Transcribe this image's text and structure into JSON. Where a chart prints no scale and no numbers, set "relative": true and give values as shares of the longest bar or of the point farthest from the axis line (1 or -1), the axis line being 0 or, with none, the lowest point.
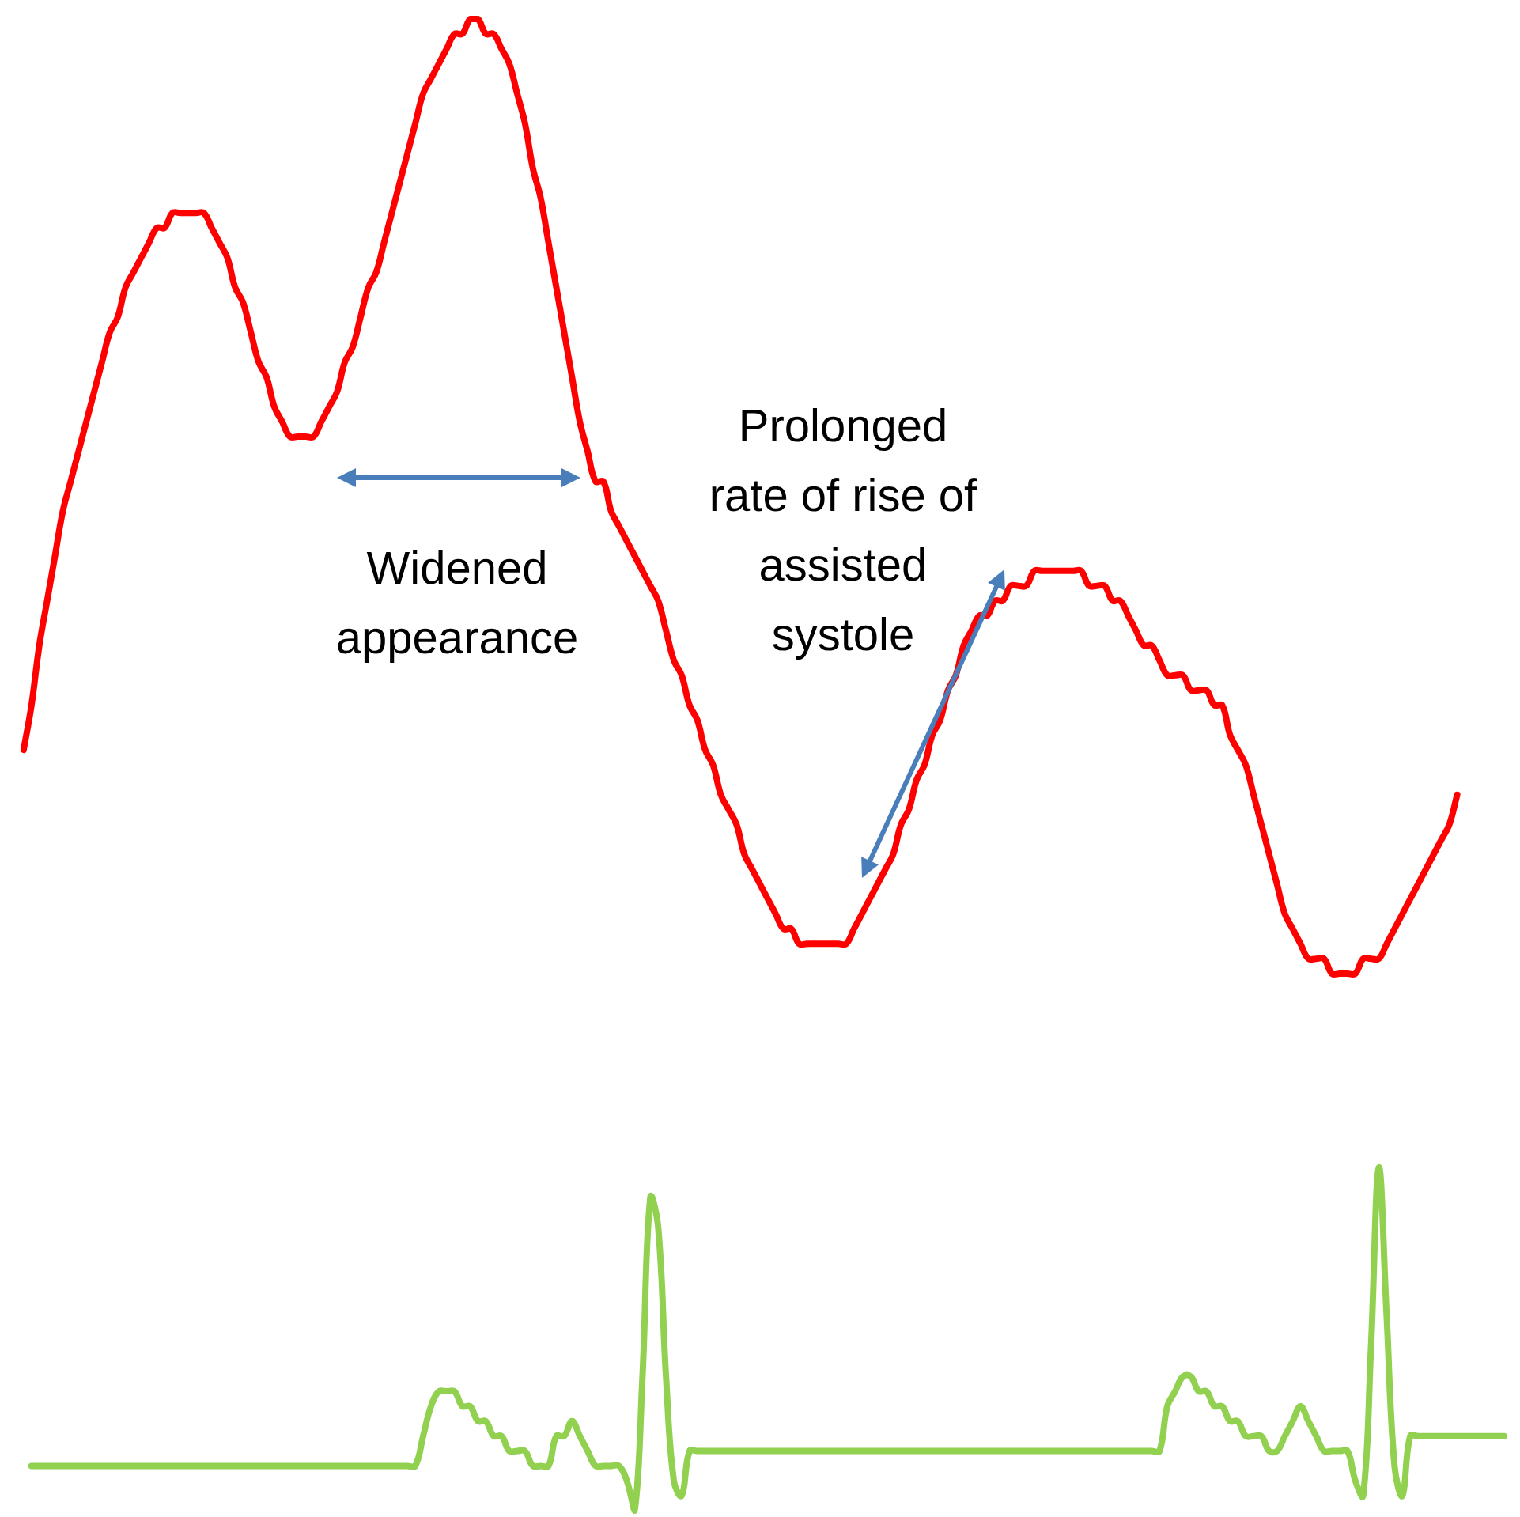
{
  "chart_data": {
    "type": "line",
    "relative": true,
    "categories": [
      null,
      null,
      null,
      null,
      null,
      null,
      null,
      null,
      null,
      null,
      null,
      null,
      null,
      null,
      null,
      null,
      null,
      null,
      null,
      null,
      null,
      null,
      null,
      null,
      null,
      null,
      null,
      null,
      null,
      null,
      null,
      null,
      null,
      null,
      null,
      null,
      null,
      null,
      null,
      null,
      null,
      null,
      null,
      null,
      null,
      null,
      null,
      null,
      null,
      null,
      null,
      null,
      null,
      null,
      null,
      null,
      null,
      null,
      null,
      null,
      null,
      null,
      null,
      null,
      null,
      null,
      null,
      null,
      null,
      null,
      null,
      null,
      null,
      null,
      null,
      null,
      null,
      null,
      null,
      null,
      null,
      null,
      null,
      null,
      null,
      null,
      null,
      null,
      null,
      null,
      null,
      null,
      null,
      null,
      null,
      null,
      null,
      null,
      null,
      null,
      null,
      null,
      null,
      null,
      null,
      null,
      null,
      null,
      null,
      null,
      null,
      null,
      null,
      null,
      null,
      null,
      null,
      null,
      null,
      null,
      null,
      null,
      null,
      null,
      null,
      null,
      null,
      null,
      null,
      null,
      null,
      null,
      null,
      null,
      null,
      null,
      null,
      null,
      null,
      null,
      null,
      null,
      null,
      null,
      null,
      null,
      null,
      null,
      null,
      null,
      null,
      null,
      null,
      null,
      null,
      null,
      null,
      null,
      null,
      null,
      null,
      null,
      null,
      null,
      null,
      null,
      null,
      null,
      null,
      null,
      null,
      null,
      null,
      null,
      null,
      null,
      null,
      null,
      null,
      null,
      null,
      null,
      null,
      null,
      null,
      null,
      null,
      null,
      null,
      null,
      null
    ],
    "series": [
      {
        "color": "#ff0000",
        "values": [
          null,
          0.51,
          0.54,
          0.58,
          0.61,
          0.64,
          0.67,
          0.69,
          0.71,
          0.73,
          0.75,
          0.77,
          0.79,
          0.8,
          0.82,
          0.83,
          0.84,
          0.85,
          0.86,
          0.86,
          0.87,
          0.87,
          0.87,
          0.87,
          0.87,
          0.86,
          0.85,
          0.84,
          0.82,
          0.81,
          0.79,
          0.77,
          0.76,
          0.74,
          0.73,
          0.72,
          0.72,
          0.72,
          0.72,
          0.73,
          0.74,
          0.75,
          0.77,
          0.78,
          0.8,
          0.82,
          0.83,
          0.85,
          0.87,
          0.89,
          0.91,
          0.93,
          0.95,
          0.96,
          0.97,
          0.98,
          0.99,
          0.99,
          1,
          1,
          0.99,
          0.99,
          0.98,
          0.97,
          0.95,
          0.93,
          0.9,
          0.88,
          0.85,
          0.82,
          0.79,
          0.76,
          0.73,
          0.71,
          0.69,
          0.69,
          0.67,
          0.66,
          0.65,
          0.64,
          0.63,
          0.62,
          0.61,
          0.59,
          0.57,
          0.56,
          0.54,
          0.53,
          0.51,
          0.5,
          0.48,
          0.47,
          0.46,
          0.44,
          0.43,
          0.42,
          0.41,
          0.4,
          0.39,
          0.39,
          0.38,
          0.38,
          0.38,
          0.38,
          0.38,
          0.38,
          0.38,
          0.39,
          0.4,
          0.41,
          0.42,
          0.43,
          0.44,
          0.46,
          0.47,
          0.49,
          0.5,
          0.52,
          0.53,
          0.55,
          0.56,
          0.58,
          0.59,
          0.6,
          0.6,
          0.61,
          0.61,
          0.62,
          0.62,
          0.62,
          0.63,
          0.63,
          0.63,
          0.63,
          0.63,
          0.63,
          0.63,
          0.62,
          0.62,
          0.62,
          0.61,
          0.61,
          0.6,
          0.59,
          0.58,
          0.58,
          0.57,
          0.56,
          0.56,
          0.56,
          0.55,
          0.55,
          0.55,
          0.54,
          0.54,
          0.52,
          0.51,
          0.5,
          0.48,
          0.46,
          0.44,
          0.42,
          0.4,
          0.39,
          0.38,
          0.37,
          0.37,
          0.37,
          0.36,
          0.36,
          0.36,
          0.36,
          0.37,
          0.37,
          0.37,
          0.38,
          0.39,
          0.4,
          0.41,
          0.42,
          0.43,
          0.44,
          0.45,
          0.46,
          0.48,
          null,
          null,
          null,
          null,
          null,
          null
        ]
      },
      {
        "color": "#92d050",
        "values": [
          null,
          null,
          0.03,
          0.03,
          0.03,
          0.03,
          0.03,
          0.03,
          0.03,
          0.03,
          0.03,
          0.03,
          0.03,
          0.03,
          0.03,
          0.03,
          0.03,
          0.03,
          0.03,
          0.03,
          0.03,
          0.03,
          0.03,
          0.03,
          0.03,
          0.03,
          0.03,
          0.03,
          0.03,
          0.03,
          0.03,
          0.03,
          0.03,
          0.03,
          0.03,
          0.03,
          0.03,
          0.03,
          0.03,
          0.03,
          0.03,
          0.03,
          0.03,
          0.03,
          0.03,
          0.03,
          0.03,
          0.03,
          0.03,
          0.03,
          0.03,
          0.03,
          0.05,
          0.07,
          0.08,
          0.08,
          0.08,
          0.07,
          0.07,
          0.06,
          0.06,
          0.05,
          0.05,
          0.04,
          0.04,
          0.04,
          0.03,
          0.03,
          0.03,
          0.05,
          0.05,
          0.06,
          0.05,
          0.04,
          0.03,
          0.03,
          0.03,
          0.03,
          0.02,
          0,
          0.09,
          0.21,
          0.19,
          0.09,
          0.02,
          0.01,
          0.04,
          0.04,
          0.04,
          0.04,
          0.04,
          0.04,
          0.04,
          0.04,
          0.04,
          0.04,
          0.04,
          0.04,
          0.04,
          0.04,
          0.04,
          0.04,
          0.04,
          0.04,
          0.04,
          0.04,
          0.04,
          0.04,
          0.04,
          0.04,
          0.04,
          0.04,
          0.04,
          0.04,
          0.04,
          0.04,
          0.04,
          0.04,
          0.04,
          0.04,
          0.04,
          0.04,
          0.04,
          0.04,
          0.04,
          0.04,
          0.04,
          0.04,
          0.04,
          0.04,
          0.04,
          0.04,
          0.04,
          0.04,
          0.04,
          0.04,
          0.04,
          0.04,
          0.04,
          0.04,
          0.04,
          0.04,
          0.04,
          0.04,
          0.04,
          0.04,
          0.04,
          0.07,
          0.08,
          0.09,
          0.09,
          0.08,
          0.08,
          0.07,
          0.07,
          0.06,
          0.06,
          0.05,
          0.05,
          0.05,
          0.04,
          0.04,
          0.05,
          0.06,
          0.07,
          0.06,
          0.05,
          0.04,
          0.04,
          0.04,
          0.04,
          0.02,
          0.01,
          0.11,
          0.23,
          0.13,
          0.03,
          0.01,
          0.05,
          0.05,
          0.05,
          0.05,
          0.05,
          0.05,
          0.05,
          0.05,
          0.05,
          0.05,
          0.05,
          0.05,
          0.05
        ]
      }
    ],
    "annotations": [
      "Widened appearance",
      "Prolonged rate of rise of assisted systole"
    ]
  }
}
